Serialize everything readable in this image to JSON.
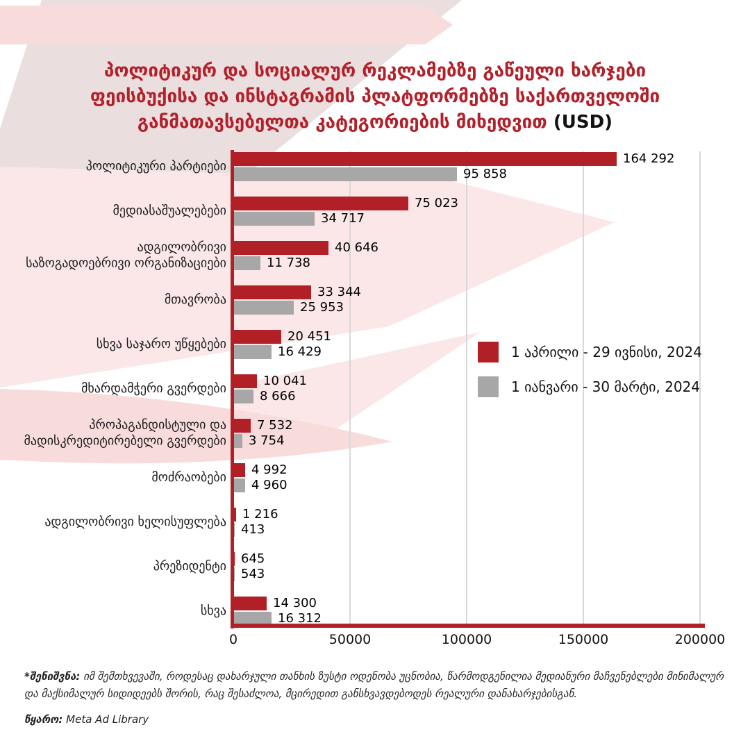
{
  "title": {
    "lines": [
      "პოლიტიკურ და სოციალურ რეკლამებზე გაწეული ხარჯები",
      "ფეისბუქისა და ინსტაგრამის პლატფორმებზე საქართველოში",
      "განმათავსებელთა კატეგორიების მიხედვით"
    ],
    "suffix": "(USD)",
    "title_color": "#b3202a",
    "suffix_color": "#111111"
  },
  "chart_data": {
    "type": "bar",
    "orientation": "horizontal",
    "title": "პოლიტიკურ და სოციალურ რეკლამებზე გაწეული ხარჯები ფეისბუქისა და ინსტაგრამის პლატფორმებზე საქართველოში განმათავსებელთა კატეგორიების მიხედვით (USD)",
    "categories": [
      "პოლიტიკური პარტიები",
      "მედიასაშუალებები",
      "ადგილობრივი\nსაზოგადოებრივი ორგანიზაციები",
      "მთავრობა",
      "სხვა საჯარო უწყებები",
      "მხარდამჭერი გვერდები",
      "პროპაგანდისტული და\nმადისკრედიტირებელი გვერდები",
      "მოძრაობები",
      "ადგილობრივი ხელისუფლება",
      "პრეზიდენტი",
      "სხვა"
    ],
    "series": [
      {
        "name": "1 აპრილი - 29 ივნისი, 2024",
        "color": "#b22027",
        "values": [
          164292,
          75023,
          40646,
          33344,
          20451,
          10041,
          7532,
          4992,
          1216,
          645,
          14300
        ]
      },
      {
        "name": "1 იანვარი - 30 მარტი, 2024",
        "color": "#a7a7a7",
        "values": [
          95858,
          34717,
          11738,
          25953,
          16429,
          8666,
          3754,
          4960,
          413,
          543,
          16312
        ]
      }
    ],
    "xlabel": "",
    "ylabel": "",
    "x_ticks": [
      0,
      50000,
      100000,
      150000,
      200000
    ],
    "xlim": [
      0,
      200000
    ],
    "grid": true,
    "legend_position": "middle-right",
    "value_label_format": "space-thousands"
  },
  "footnote": {
    "label": "*შენიშვნა:",
    "text": " იმ შემთხვევაში, როდესაც დახარჯული თანხის ზუსტი ოდენობა უცნობია, წარმოდგენილია მედიანური მაჩვენებლები მინიმალურ და მაქსიმალურ სიდიდეებს შორის, რაც შესაძლოა, მცირედით განსხვავდებოდეს რეალური დანახარჯებისგან."
  },
  "source": {
    "label": "წყარო:",
    "text": " Meta Ad Library"
  }
}
